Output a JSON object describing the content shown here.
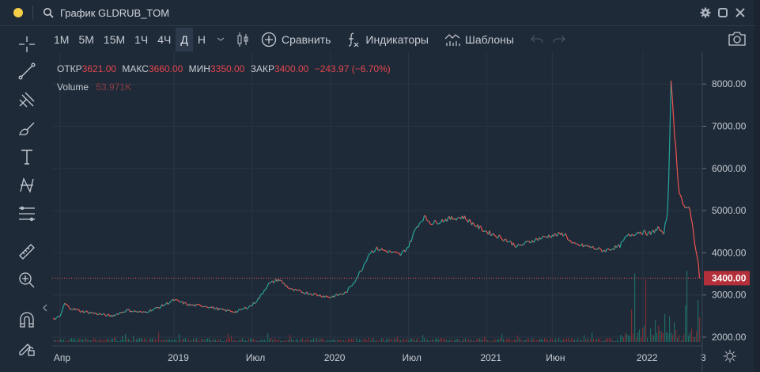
{
  "window": {
    "title": "График GLDRUB_TOM",
    "status_color": "#f5cf47"
  },
  "toolbar": {
    "timeframes": [
      "1М",
      "5М",
      "15М",
      "1Ч",
      "4Ч",
      "Д",
      "Н"
    ],
    "active": "Д",
    "compare": "Сравнить",
    "indicators": "Индикаторы",
    "templates": "Шаблоны"
  },
  "legend": {
    "open_label": "ОТКР",
    "open": "3621.00",
    "high_label": "МАКС",
    "high": "3660.00",
    "low_label": "МИН",
    "low": "3350.00",
    "close_label": "ЗАКР",
    "close": "3400.00",
    "change": "−243.97 (−6.70%)",
    "volume_label": "Volume",
    "volume": "53.971K"
  },
  "colors": {
    "up": "#26a69a",
    "down": "#ef5350",
    "bg": "#1f2a38"
  },
  "chart_data": {
    "type": "line",
    "title": "GLDRUB_TOM",
    "last_price": 3400,
    "last_price_label": "3400.00",
    "y_ticks": [
      "8000.00",
      "7000.00",
      "6000.00",
      "5000.00",
      "4000.00",
      "3000.00",
      "2000.00"
    ],
    "y_tick_values": [
      8000,
      7000,
      6000,
      5000,
      4000,
      3000,
      2000
    ],
    "ylim": [
      1980,
      8500
    ],
    "x_ticks": [
      {
        "label": "Апр",
        "t": 2018.27
      },
      {
        "label": "2019",
        "t": 2019.0
      },
      {
        "label": "Июл",
        "t": 2019.5
      },
      {
        "label": "2020",
        "t": 2020.0
      },
      {
        "label": "Июл",
        "t": 2020.5
      },
      {
        "label": "2021",
        "t": 2021.0
      },
      {
        "label": "Июн",
        "t": 2021.42
      },
      {
        "label": "2022",
        "t": 2022.0
      },
      {
        "label": "3",
        "t": 2022.37
      }
    ],
    "xlim": [
      2018.22,
      2022.38
    ],
    "x": [
      2018.22,
      2018.27,
      2018.3,
      2018.33,
      2018.4,
      2018.5,
      2018.6,
      2018.7,
      2018.8,
      2018.9,
      2019.0,
      2019.1,
      2019.2,
      2019.3,
      2019.4,
      2019.5,
      2019.55,
      2019.6,
      2019.67,
      2019.75,
      2019.85,
      2019.95,
      2020.0,
      2020.1,
      2020.15,
      2020.2,
      2020.25,
      2020.3,
      2020.4,
      2020.45,
      2020.5,
      2020.55,
      2020.6,
      2020.65,
      2020.75,
      2020.85,
      2020.95,
      2021.0,
      2021.1,
      2021.2,
      2021.3,
      2021.4,
      2021.5,
      2021.55,
      2021.65,
      2021.75,
      2021.85,
      2021.9,
      2021.98,
      2022.05,
      2022.1,
      2022.13,
      2022.16,
      2022.18,
      2022.2,
      2022.23,
      2022.27,
      2022.3,
      2022.33,
      2022.37
    ],
    "values": [
      2420,
      2480,
      2800,
      2700,
      2620,
      2560,
      2500,
      2640,
      2580,
      2700,
      2880,
      2760,
      2740,
      2650,
      2600,
      2760,
      2950,
      3250,
      3370,
      3120,
      3050,
      2980,
      2950,
      3050,
      3300,
      3600,
      4000,
      4100,
      4000,
      3950,
      4150,
      4600,
      4850,
      4700,
      4800,
      4850,
      4600,
      4500,
      4350,
      4150,
      4300,
      4400,
      4450,
      4200,
      4150,
      4050,
      4150,
      4400,
      4500,
      4450,
      4600,
      4400,
      5000,
      8000,
      7000,
      5500,
      5000,
      5100,
      4300,
      3400
    ]
  }
}
